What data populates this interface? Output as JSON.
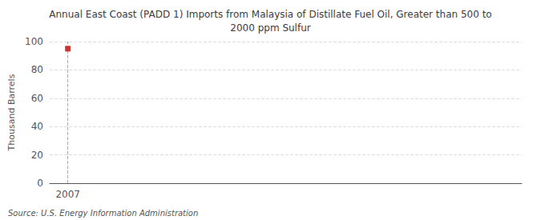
{
  "chart_data": {
    "type": "scatter",
    "title": "Annual East Coast (PADD 1) Imports from Malaysia of Distillate Fuel Oil, Greater than 500 to\n2000 ppm Sulfur",
    "ylabel": "Thousand Barrels",
    "annotation": "Source: U.S. Energy Information Administration",
    "x": [
      2007
    ],
    "values": [
      95
    ],
    "color": "#cc0000",
    "marker": "square",
    "xlim": [
      2006.4,
      2022
    ],
    "xticks": [
      2007
    ],
    "ylim": [
      0,
      100
    ],
    "yticks": [
      0,
      20,
      40,
      60,
      80,
      100
    ],
    "grid": true
  }
}
